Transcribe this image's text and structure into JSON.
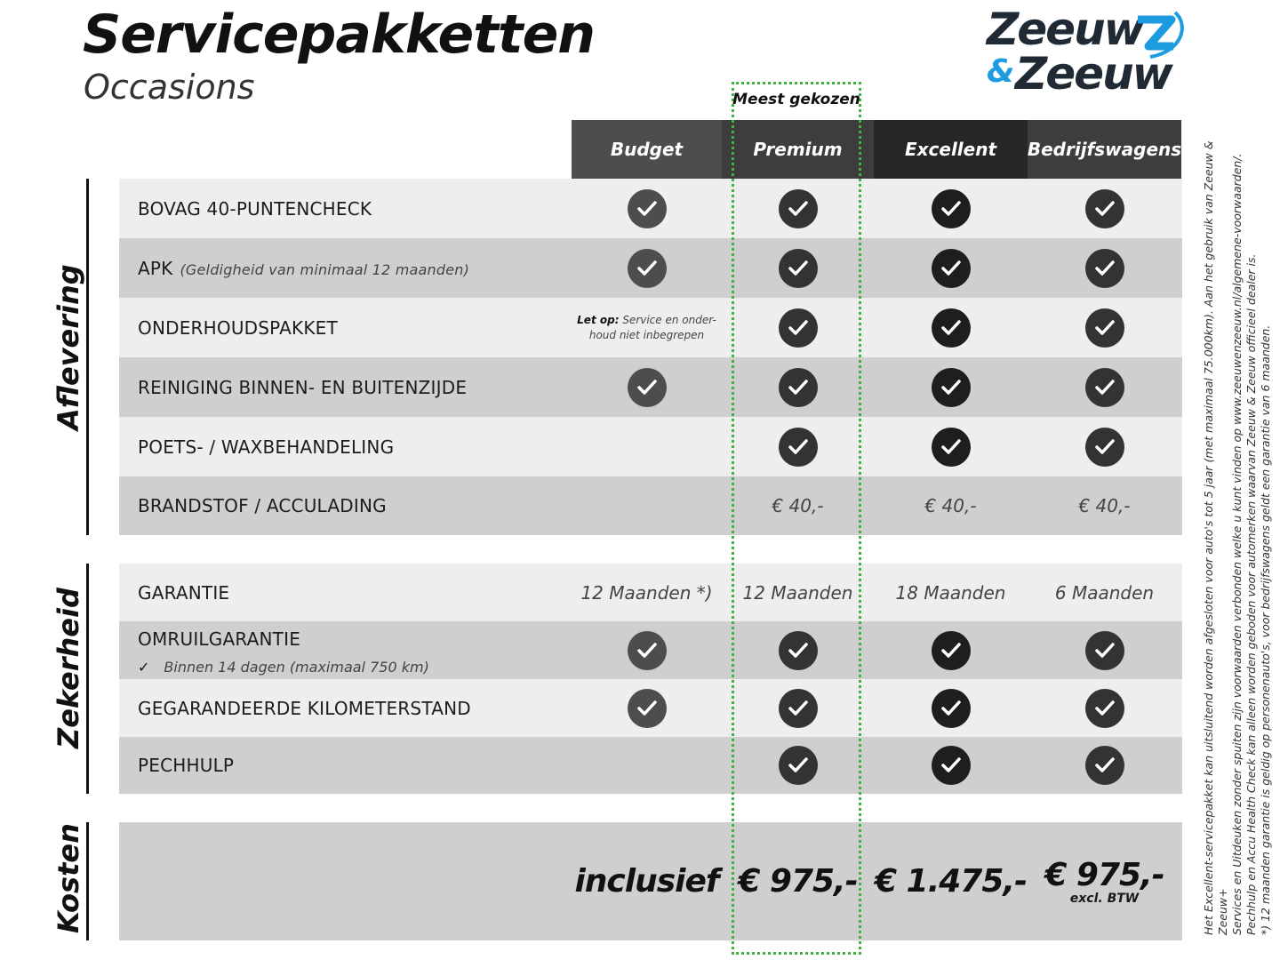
{
  "header": {
    "title": "Servicepakketten",
    "subtitle": "Occasions",
    "logo": {
      "line1": "Zeeuw",
      "amp": "&",
      "line2": "Zeeuw"
    },
    "badge": "Meest gekozen"
  },
  "columns": [
    "Budget",
    "Premium",
    "Excellent",
    "Bedrijfswagens"
  ],
  "colors": {
    "col_header": [
      "#4d4d4d",
      "#3d3d3d",
      "#262626",
      "#3d3d3d"
    ],
    "check": [
      "#4d4d4d",
      "#333333",
      "#1e1e1e",
      "#333333"
    ],
    "highlight": "#3db33d",
    "brand_blue": "#1d9be0",
    "brand_dark": "#1f2a35"
  },
  "sections": [
    {
      "name": "Aflevering",
      "rows": [
        {
          "label": "BOVAG 40-PUNTENCHECK",
          "cells": [
            "check",
            "check",
            "check",
            "check"
          ]
        },
        {
          "label": "APK",
          "note": "(Geldigheid van minimaal 12 maanden)",
          "cells": [
            "check",
            "check",
            "check",
            "check"
          ]
        },
        {
          "label": "ONDERHOUDSPAKKET",
          "cells": [
            "note",
            "check",
            "check",
            "check"
          ],
          "budget_note": {
            "bold": "Let op:",
            "text": " Service en onder-",
            "text2": "houd niet inbegrepen"
          }
        },
        {
          "label": "REINIGING BINNEN- EN BUITENZIJDE",
          "cells": [
            "check",
            "check",
            "check",
            "check"
          ]
        },
        {
          "label": "POETS- / WAXBEHANDELING",
          "cells": [
            "",
            "check",
            "check",
            "check"
          ]
        },
        {
          "label": "BRANDSTOF / ACCULADING",
          "cells": [
            "",
            "€ 40,-",
            "€ 40,-",
            "€ 40,-"
          ]
        }
      ]
    },
    {
      "name": "Zekerheid",
      "rows": [
        {
          "label": "GARANTIE",
          "cells": [
            "12 Maanden *)",
            "12 Maanden",
            "18 Maanden",
            "6 Maanden"
          ]
        },
        {
          "label": "OMRUILGARANTIE",
          "sub": "Binnen 14 dagen (maximaal 750 km)",
          "cells": [
            "check",
            "check",
            "check",
            "check"
          ]
        },
        {
          "label": "GEGARANDEERDE KILOMETERSTAND",
          "cells": [
            "check",
            "check",
            "check",
            "check"
          ]
        },
        {
          "label": "PECHHULP",
          "cells": [
            "",
            "check",
            "check",
            "check"
          ]
        }
      ]
    },
    {
      "name": "Kosten",
      "prices": [
        "inclusief",
        "€ 975,-",
        "€ 1.475,-",
        "€ 975,-"
      ],
      "price_note": "excl. BTW"
    }
  ],
  "footnotes": [
    "Het Excellent-servicepakket kan uitsluitend worden afgesloten voor auto's tot 5 jaar (met maximaal 75.000km). Aan het gebruik van Zeeuw & Zeeuw+",
    "Services en Uitdeuken zonder spuiten zijn voorwaarden verbonden welke u kunt vinden op www.zeeuwenzeeuw.nl/algemene-voorwaarden/.",
    "Pechhulp en Accu Health Check kan alleen worden geboden voor automerken waarvan Zeeuw & Zeeuw officieel dealer is.",
    "*) 12 maanden garantie is geldig op personenauto's, voor bedrijfswagens geldt een garantie van 6 maanden."
  ]
}
